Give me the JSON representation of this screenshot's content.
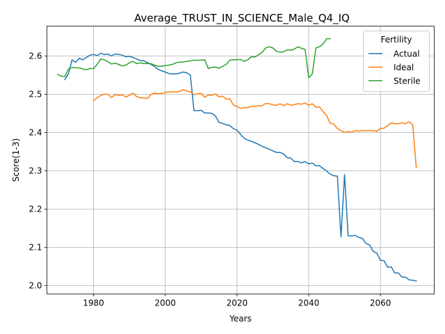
{
  "chart_data": {
    "type": "line",
    "title": "Average_TRUST_IN_SCIENCE_Male_Q4_IQ",
    "xlabel": "Years",
    "ylabel": "Score(1-3)",
    "xlim": [
      1967,
      2075
    ],
    "ylim": [
      1.978,
      2.678
    ],
    "xticks": [
      1980,
      2000,
      2020,
      2040,
      2060
    ],
    "yticks": [
      2.0,
      2.1,
      2.2,
      2.3,
      2.4,
      2.5,
      2.6
    ],
    "grid": true,
    "legend": {
      "title": "Fertility",
      "position": "top-right"
    },
    "series": [
      {
        "name": "Actual",
        "color": "#1f77b4",
        "points": [
          [
            1972,
            2.538
          ],
          [
            1973,
            2.553
          ],
          [
            1974,
            2.59
          ],
          [
            1975,
            2.583
          ],
          [
            1976,
            2.594
          ],
          [
            1977,
            2.59
          ],
          [
            1978,
            2.596
          ],
          [
            1979,
            2.602
          ],
          [
            1980,
            2.604
          ],
          [
            1981,
            2.601
          ],
          [
            1982,
            2.607
          ],
          [
            1983,
            2.604
          ],
          [
            1984,
            2.605
          ],
          [
            1985,
            2.6
          ],
          [
            1986,
            2.605
          ],
          [
            1987,
            2.604
          ],
          [
            1988,
            2.602
          ],
          [
            1989,
            2.598
          ],
          [
            1990,
            2.599
          ],
          [
            1991,
            2.596
          ],
          [
            1992,
            2.592
          ],
          [
            1993,
            2.588
          ],
          [
            1994,
            2.587
          ],
          [
            1995,
            2.583
          ],
          [
            1996,
            2.578
          ],
          [
            1997,
            2.572
          ],
          [
            1998,
            2.565
          ],
          [
            1999,
            2.561
          ],
          [
            2000,
            2.558
          ],
          [
            2001,
            2.554
          ],
          [
            2002,
            2.553
          ],
          [
            2003,
            2.553
          ],
          [
            2004,
            2.555
          ],
          [
            2005,
            2.558
          ],
          [
            2006,
            2.556
          ],
          [
            2007,
            2.55
          ],
          [
            2008,
            2.457
          ],
          [
            2009,
            2.457
          ],
          [
            2010,
            2.458
          ],
          [
            2011,
            2.451
          ],
          [
            2012,
            2.451
          ],
          [
            2013,
            2.45
          ],
          [
            2014,
            2.443
          ],
          [
            2015,
            2.426
          ],
          [
            2016,
            2.424
          ],
          [
            2017,
            2.42
          ],
          [
            2018,
            2.418
          ],
          [
            2019,
            2.41
          ],
          [
            2020,
            2.406
          ],
          [
            2021,
            2.395
          ],
          [
            2022,
            2.385
          ],
          [
            2023,
            2.38
          ],
          [
            2024,
            2.377
          ],
          [
            2025,
            2.373
          ],
          [
            2026,
            2.369
          ],
          [
            2027,
            2.364
          ],
          [
            2028,
            2.36
          ],
          [
            2029,
            2.356
          ],
          [
            2030,
            2.352
          ],
          [
            2031,
            2.348
          ],
          [
            2032,
            2.348
          ],
          [
            2033,
            2.344
          ],
          [
            2034,
            2.334
          ],
          [
            2035,
            2.333
          ],
          [
            2036,
            2.324
          ],
          [
            2037,
            2.324
          ],
          [
            2038,
            2.321
          ],
          [
            2039,
            2.324
          ],
          [
            2040,
            2.318
          ],
          [
            2041,
            2.32
          ],
          [
            2042,
            2.313
          ],
          [
            2043,
            2.313
          ],
          [
            2044,
            2.306
          ],
          [
            2045,
            2.299
          ],
          [
            2046,
            2.291
          ],
          [
            2047,
            2.287
          ],
          [
            2048,
            2.286
          ],
          [
            2049,
            2.127
          ],
          [
            2050,
            2.29
          ],
          [
            2051,
            2.13
          ],
          [
            2052,
            2.13
          ],
          [
            2053,
            2.131
          ],
          [
            2054,
            2.126
          ],
          [
            2055,
            2.123
          ],
          [
            2056,
            2.11
          ],
          [
            2057,
            2.106
          ],
          [
            2058,
            2.089
          ],
          [
            2059,
            2.085
          ],
          [
            2060,
            2.066
          ],
          [
            2061,
            2.065
          ],
          [
            2062,
            2.048
          ],
          [
            2063,
            2.049
          ],
          [
            2064,
            2.033
          ],
          [
            2065,
            2.033
          ],
          [
            2066,
            2.022
          ],
          [
            2067,
            2.022
          ],
          [
            2068,
            2.015
          ],
          [
            2069,
            2.014
          ],
          [
            2070,
            2.012
          ]
        ]
      },
      {
        "name": "Ideal",
        "color": "#ff7f0e",
        "points": [
          [
            1980,
            2.483
          ],
          [
            1981,
            2.491
          ],
          [
            1982,
            2.497
          ],
          [
            1983,
            2.5
          ],
          [
            1984,
            2.5
          ],
          [
            1985,
            2.491
          ],
          [
            1986,
            2.499
          ],
          [
            1987,
            2.497
          ],
          [
            1988,
            2.498
          ],
          [
            1989,
            2.493
          ],
          [
            1990,
            2.497
          ],
          [
            1991,
            2.503
          ],
          [
            1992,
            2.494
          ],
          [
            1993,
            2.491
          ],
          [
            1994,
            2.49
          ],
          [
            1995,
            2.489
          ],
          [
            1996,
            2.499
          ],
          [
            1997,
            2.503
          ],
          [
            1998,
            2.501
          ],
          [
            1999,
            2.502
          ],
          [
            2000,
            2.505
          ],
          [
            2001,
            2.506
          ],
          [
            2002,
            2.506
          ],
          [
            2003,
            2.506
          ],
          [
            2004,
            2.507
          ],
          [
            2005,
            2.512
          ],
          [
            2006,
            2.508
          ],
          [
            2007,
            2.506
          ],
          [
            2008,
            2.499
          ],
          [
            2009,
            2.501
          ],
          [
            2010,
            2.502
          ],
          [
            2011,
            2.492
          ],
          [
            2012,
            2.498
          ],
          [
            2013,
            2.497
          ],
          [
            2014,
            2.501
          ],
          [
            2015,
            2.493
          ],
          [
            2016,
            2.495
          ],
          [
            2017,
            2.487
          ],
          [
            2018,
            2.488
          ],
          [
            2019,
            2.472
          ],
          [
            2020,
            2.468
          ],
          [
            2021,
            2.463
          ],
          [
            2022,
            2.465
          ],
          [
            2023,
            2.465
          ],
          [
            2024,
            2.468
          ],
          [
            2025,
            2.468
          ],
          [
            2026,
            2.47
          ],
          [
            2027,
            2.47
          ],
          [
            2028,
            2.476
          ],
          [
            2029,
            2.475
          ],
          [
            2030,
            2.472
          ],
          [
            2031,
            2.471
          ],
          [
            2032,
            2.475
          ],
          [
            2033,
            2.47
          ],
          [
            2034,
            2.475
          ],
          [
            2035,
            2.471
          ],
          [
            2036,
            2.473
          ],
          [
            2037,
            2.475
          ],
          [
            2038,
            2.474
          ],
          [
            2039,
            2.477
          ],
          [
            2040,
            2.471
          ],
          [
            2041,
            2.475
          ],
          [
            2042,
            2.466
          ],
          [
            2043,
            2.467
          ],
          [
            2044,
            2.455
          ],
          [
            2045,
            2.444
          ],
          [
            2046,
            2.424
          ],
          [
            2047,
            2.422
          ],
          [
            2048,
            2.41
          ],
          [
            2049,
            2.405
          ],
          [
            2050,
            2.4
          ],
          [
            2051,
            2.402
          ],
          [
            2052,
            2.401
          ],
          [
            2053,
            2.405
          ],
          [
            2054,
            2.404
          ],
          [
            2055,
            2.405
          ],
          [
            2056,
            2.405
          ],
          [
            2057,
            2.405
          ],
          [
            2058,
            2.405
          ],
          [
            2059,
            2.403
          ],
          [
            2060,
            2.411
          ],
          [
            2061,
            2.411
          ],
          [
            2062,
            2.418
          ],
          [
            2063,
            2.425
          ],
          [
            2064,
            2.423
          ],
          [
            2065,
            2.423
          ],
          [
            2066,
            2.425
          ],
          [
            2067,
            2.423
          ],
          [
            2068,
            2.428
          ],
          [
            2069,
            2.42
          ],
          [
            2070,
            2.308
          ]
        ]
      },
      {
        "name": "Sterile",
        "color": "#2ca02c",
        "points": [
          [
            1970,
            2.552
          ],
          [
            1971,
            2.547
          ],
          [
            1972,
            2.546
          ],
          [
            1973,
            2.566
          ],
          [
            1974,
            2.57
          ],
          [
            1975,
            2.569
          ],
          [
            1976,
            2.569
          ],
          [
            1977,
            2.566
          ],
          [
            1978,
            2.564
          ],
          [
            1979,
            2.567
          ],
          [
            1980,
            2.567
          ],
          [
            1981,
            2.578
          ],
          [
            1982,
            2.592
          ],
          [
            1983,
            2.59
          ],
          [
            1984,
            2.585
          ],
          [
            1985,
            2.579
          ],
          [
            1986,
            2.581
          ],
          [
            1987,
            2.578
          ],
          [
            1988,
            2.574
          ],
          [
            1989,
            2.576
          ],
          [
            1990,
            2.582
          ],
          [
            1991,
            2.586
          ],
          [
            1992,
            2.58
          ],
          [
            1993,
            2.582
          ],
          [
            1994,
            2.58
          ],
          [
            1995,
            2.58
          ],
          [
            1996,
            2.58
          ],
          [
            1997,
            2.576
          ],
          [
            1998,
            2.573
          ],
          [
            1999,
            2.573
          ],
          [
            2000,
            2.575
          ],
          [
            2001,
            2.576
          ],
          [
            2002,
            2.578
          ],
          [
            2003,
            2.582
          ],
          [
            2004,
            2.584
          ],
          [
            2005,
            2.584
          ],
          [
            2006,
            2.586
          ],
          [
            2007,
            2.587
          ],
          [
            2008,
            2.589
          ],
          [
            2009,
            2.589
          ],
          [
            2010,
            2.589
          ],
          [
            2011,
            2.59
          ],
          [
            2012,
            2.567
          ],
          [
            2013,
            2.57
          ],
          [
            2014,
            2.571
          ],
          [
            2015,
            2.568
          ],
          [
            2016,
            2.573
          ],
          [
            2017,
            2.578
          ],
          [
            2018,
            2.589
          ],
          [
            2019,
            2.59
          ],
          [
            2020,
            2.59
          ],
          [
            2021,
            2.591
          ],
          [
            2022,
            2.586
          ],
          [
            2023,
            2.59
          ],
          [
            2024,
            2.598
          ],
          [
            2025,
            2.597
          ],
          [
            2026,
            2.603
          ],
          [
            2027,
            2.609
          ],
          [
            2028,
            2.621
          ],
          [
            2029,
            2.624
          ],
          [
            2030,
            2.621
          ],
          [
            2031,
            2.612
          ],
          [
            2032,
            2.61
          ],
          [
            2033,
            2.611
          ],
          [
            2034,
            2.616
          ],
          [
            2035,
            2.615
          ],
          [
            2036,
            2.618
          ],
          [
            2037,
            2.624
          ],
          [
            2038,
            2.62
          ],
          [
            2039,
            2.617
          ],
          [
            2040,
            2.543
          ],
          [
            2041,
            2.553
          ],
          [
            2042,
            2.621
          ],
          [
            2043,
            2.624
          ],
          [
            2044,
            2.631
          ],
          [
            2045,
            2.645
          ],
          [
            2046,
            2.645
          ]
        ]
      }
    ]
  }
}
